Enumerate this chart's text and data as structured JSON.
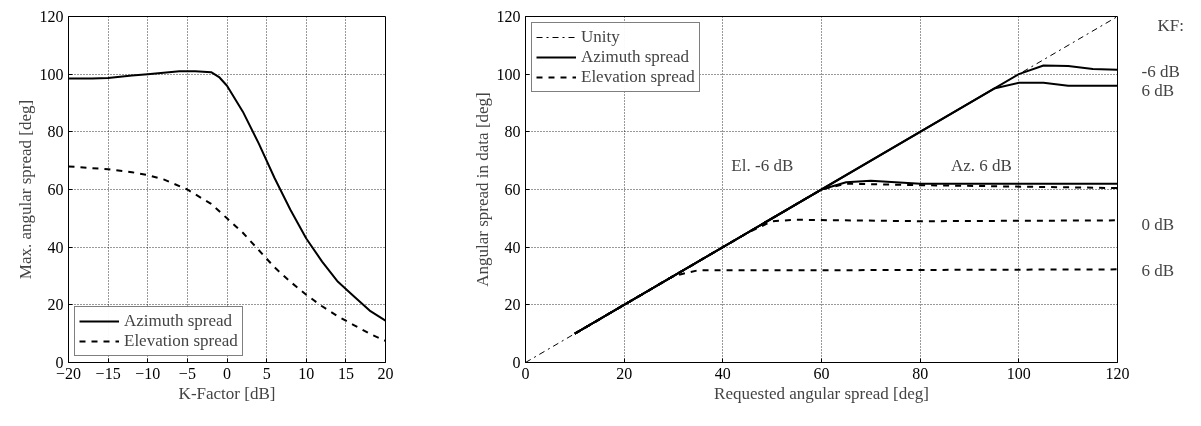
{
  "chart_data": [
    {
      "type": "line",
      "xlabel": "K-Factor [dB]",
      "ylabel": "Max. angular spread [deg]",
      "xlim": [
        -20,
        20
      ],
      "ylim": [
        0,
        120
      ],
      "xticks": [
        -20,
        -15,
        -10,
        -5,
        0,
        5,
        10,
        15,
        20
      ],
      "yticks": [
        0,
        20,
        40,
        60,
        80,
        100,
        120
      ],
      "grid": true,
      "legend": "bottom left",
      "series": [
        {
          "name": "Azimuth spread",
          "color": "#000000",
          "line_style": "solid",
          "x": [
            -20,
            -17,
            -15,
            -12,
            -10,
            -8,
            -6,
            -4,
            -2,
            -1,
            0,
            2,
            4,
            6,
            8,
            10,
            12,
            14,
            16,
            18,
            20
          ],
          "values": [
            98.5,
            98.5,
            98.7,
            99.5,
            100,
            100.5,
            101,
            101,
            100.7,
            99,
            96,
            87,
            76,
            64,
            53,
            43,
            35,
            28,
            23,
            18,
            14.5
          ]
        },
        {
          "name": "Elevation spread",
          "color": "#000000",
          "line_style": "dashed",
          "x": [
            -20,
            -15,
            -12,
            -10,
            -8,
            -5,
            -2,
            0,
            2,
            4,
            6,
            8,
            10,
            12,
            14,
            16,
            18,
            20
          ],
          "values": [
            68,
            67,
            66,
            65,
            63.5,
            60,
            55,
            50,
            45,
            39,
            33,
            28,
            23.5,
            19.5,
            16,
            13,
            10,
            7.5
          ]
        }
      ]
    },
    {
      "type": "line",
      "xlabel": "Requested angular spread [deg]",
      "ylabel": "Angular spread in data [deg]",
      "xlim": [
        0,
        120
      ],
      "ylim": [
        0,
        120
      ],
      "xticks": [
        0,
        20,
        40,
        60,
        80,
        100,
        120
      ],
      "yticks": [
        0,
        20,
        40,
        60,
        80,
        100,
        120
      ],
      "grid": true,
      "legend": "top left",
      "series": [
        {
          "name": "Unity",
          "color": "#000000",
          "line_style": "dashdot",
          "x": [
            0,
            120
          ],
          "values": [
            0,
            120
          ]
        },
        {
          "name": "Azimuth spread",
          "color": "#000000",
          "line_style": "solid",
          "x": [
            10,
            100,
            105,
            110,
            115,
            120
          ],
          "values": [
            10,
            100,
            103,
            102.8,
            101.8,
            101.5
          ]
        },
        {
          "name": null,
          "color": "#000000",
          "line_style": "solid",
          "x": [
            10,
            95,
            100,
            105,
            110,
            120
          ],
          "values": [
            10,
            95,
            97,
            97,
            96,
            96
          ]
        },
        {
          "name": null,
          "color": "#000000",
          "line_style": "solid",
          "x": [
            10,
            60,
            65,
            70,
            80,
            100,
            120
          ],
          "values": [
            10,
            60,
            62.5,
            63,
            62,
            62,
            62
          ]
        },
        {
          "name": "Elevation spread",
          "color": "#000000",
          "line_style": "dashed",
          "x": [
            10,
            60,
            65,
            80,
            120
          ],
          "values": [
            10,
            60,
            62,
            61.5,
            60.5
          ]
        },
        {
          "name": null,
          "color": "#000000",
          "line_style": "dashed",
          "x": [
            10,
            45,
            50,
            55,
            80,
            120
          ],
          "values": [
            10,
            45,
            49,
            49.5,
            49,
            49.3
          ]
        },
        {
          "name": null,
          "color": "#000000",
          "line_style": "dashed",
          "x": [
            10,
            30,
            35,
            60,
            120
          ],
          "values": [
            10,
            30,
            32,
            32,
            32.3
          ]
        }
      ],
      "annotations": [
        "KF:",
        "-6 dB",
        "6 dB",
        "0 dB",
        "6 dB",
        "El. -6 dB",
        "Az. 6 dB"
      ]
    }
  ]
}
